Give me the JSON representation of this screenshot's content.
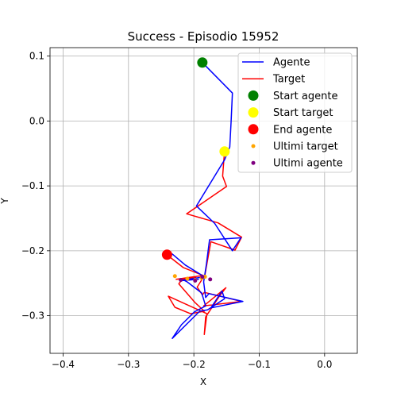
{
  "chart_data": {
    "type": "line",
    "title": "Success - Episodio 15952",
    "xlabel": "X",
    "ylabel": "Y",
    "xlim": [
      -0.42,
      0.05
    ],
    "ylim": [
      -0.358,
      0.113
    ],
    "xticks": [
      -0.4,
      -0.3,
      -0.2,
      -0.1,
      0.0
    ],
    "xtick_labels": [
      "−0.4",
      "−0.3",
      "−0.2",
      "−0.1",
      "0.0"
    ],
    "yticks": [
      -0.3,
      -0.2,
      -0.1,
      0.0,
      0.1
    ],
    "ytick_labels": [
      "−0.3",
      "−0.2",
      "−0.1",
      "0.0",
      "0.1"
    ],
    "grid": true,
    "legend_position": "top-right",
    "series": [
      {
        "name": "Agente",
        "kind": "line",
        "color": "#0000ff",
        "x": [
          -0.187,
          -0.141,
          -0.143,
          -0.145,
          -0.153,
          -0.196,
          -0.168,
          -0.141,
          -0.128,
          -0.176,
          -0.181,
          -0.185,
          -0.182,
          -0.177,
          -0.125,
          -0.174,
          -0.157,
          -0.153,
          -0.179,
          -0.191,
          -0.233,
          -0.219,
          -0.199,
          -0.182,
          -0.188,
          -0.21,
          -0.216,
          -0.193,
          -0.22,
          -0.184,
          -0.213,
          -0.233,
          -0.238,
          -0.24,
          -0.241
        ],
        "y": [
          0.09,
          0.043,
          0.0,
          -0.04,
          -0.06,
          -0.131,
          -0.158,
          -0.2,
          -0.18,
          -0.183,
          -0.222,
          -0.248,
          -0.272,
          -0.266,
          -0.278,
          -0.288,
          -0.262,
          -0.274,
          -0.291,
          -0.293,
          -0.335,
          -0.314,
          -0.294,
          -0.285,
          -0.265,
          -0.248,
          -0.245,
          -0.244,
          -0.246,
          -0.24,
          -0.222,
          -0.205,
          -0.204,
          -0.206,
          -0.207
        ]
      },
      {
        "name": "Target",
        "kind": "line",
        "color": "#ff0000",
        "x": [
          -0.153,
          -0.156,
          -0.15,
          -0.211,
          -0.163,
          -0.127,
          -0.137,
          -0.174,
          -0.183,
          -0.195,
          -0.187,
          -0.184,
          -0.127,
          -0.185,
          -0.151,
          -0.161,
          -0.182,
          -0.184,
          -0.18,
          -0.239,
          -0.229,
          -0.205,
          -0.184,
          -0.198,
          -0.223,
          -0.218,
          -0.197,
          -0.227,
          -0.186,
          -0.216,
          -0.24,
          -0.238
        ],
        "y": [
          -0.046,
          -0.085,
          -0.101,
          -0.143,
          -0.157,
          -0.179,
          -0.199,
          -0.186,
          -0.237,
          -0.256,
          -0.268,
          -0.264,
          -0.278,
          -0.285,
          -0.257,
          -0.27,
          -0.302,
          -0.329,
          -0.297,
          -0.27,
          -0.287,
          -0.297,
          -0.293,
          -0.28,
          -0.251,
          -0.244,
          -0.241,
          -0.244,
          -0.238,
          -0.226,
          -0.207,
          -0.205
        ]
      },
      {
        "name": "Start agente",
        "kind": "marker",
        "color": "#008000",
        "x": [
          -0.187
        ],
        "y": [
          0.09
        ]
      },
      {
        "name": "Start target",
        "kind": "marker",
        "color": "#ffff00",
        "x": [
          -0.153
        ],
        "y": [
          -0.047
        ]
      },
      {
        "name": "End agente",
        "kind": "marker",
        "color": "#ff0000",
        "x": [
          -0.241
        ],
        "y": [
          -0.206
        ]
      },
      {
        "name": "Ultimi target",
        "kind": "scatter",
        "color": "#ffa500",
        "x": [
          -0.229,
          -0.21,
          -0.198,
          -0.188,
          -0.183
        ],
        "y": [
          -0.239,
          -0.243,
          -0.245,
          -0.242,
          -0.24
        ]
      },
      {
        "name": "Ultimi agente",
        "kind": "scatter",
        "color": "#800080",
        "x": [
          -0.22,
          -0.198,
          -0.187,
          -0.175
        ],
        "y": [
          -0.245,
          -0.246,
          -0.24,
          -0.244
        ]
      }
    ]
  }
}
